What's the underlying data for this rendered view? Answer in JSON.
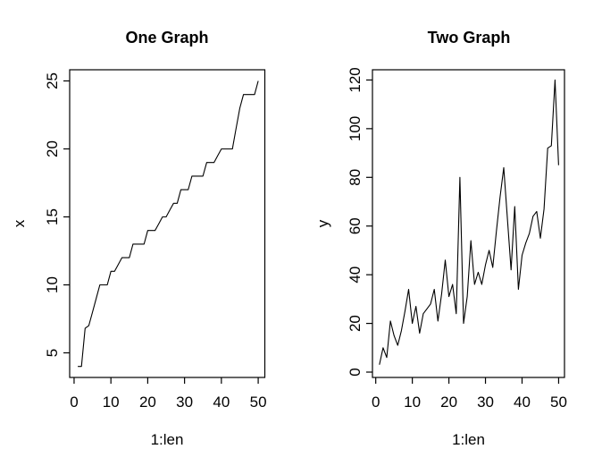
{
  "figure": {
    "background": "#ffffff",
    "line_color": "#000000",
    "text_color": "#000000"
  },
  "chart_data": [
    {
      "type": "line",
      "title": "One Graph",
      "xlabel": "1:len",
      "ylabel": "x",
      "x": [
        1,
        2,
        3,
        4,
        5,
        6,
        7,
        8,
        9,
        10,
        11,
        12,
        13,
        14,
        15,
        16,
        17,
        18,
        19,
        20,
        21,
        22,
        23,
        24,
        25,
        26,
        27,
        28,
        29,
        30,
        31,
        32,
        33,
        34,
        35,
        36,
        37,
        38,
        39,
        40,
        41,
        42,
        43,
        44,
        45,
        46,
        47,
        48,
        49,
        50
      ],
      "values": [
        4,
        4,
        6.8,
        7,
        8,
        9,
        10,
        10,
        10,
        11,
        11,
        11.5,
        12,
        12,
        12,
        13,
        13,
        13,
        13,
        14,
        14,
        14,
        14.5,
        15,
        15,
        15.5,
        16,
        16,
        17,
        17,
        17,
        18,
        18,
        18,
        18,
        19,
        19,
        19,
        19.5,
        20,
        20,
        20,
        20,
        21.5,
        23,
        24,
        24,
        24,
        24,
        25
      ],
      "xticks": [
        0,
        10,
        20,
        30,
        40,
        50
      ],
      "yticks": [
        5,
        10,
        15,
        20,
        25
      ],
      "xlim": [
        -1.2,
        51.8
      ],
      "ylim": [
        3.19,
        25.82
      ],
      "grid": false,
      "legend": null
    },
    {
      "type": "line",
      "title": "Two Graph",
      "xlabel": "1:len",
      "ylabel": "y",
      "x": [
        1,
        2,
        3,
        4,
        5,
        6,
        7,
        8,
        9,
        10,
        11,
        12,
        13,
        14,
        15,
        16,
        17,
        18,
        19,
        20,
        21,
        22,
        23,
        24,
        25,
        26,
        27,
        28,
        29,
        30,
        31,
        32,
        33,
        34,
        35,
        36,
        37,
        38,
        39,
        40,
        41,
        42,
        43,
        44,
        45,
        46,
        47,
        48,
        49,
        50
      ],
      "values": [
        3,
        10,
        6,
        21,
        15,
        11,
        17,
        25,
        34,
        20,
        27,
        16,
        24,
        26,
        28,
        34,
        21,
        32,
        46,
        31,
        36,
        24,
        80,
        20,
        31,
        54,
        36,
        41,
        36,
        44,
        50,
        43,
        58,
        72,
        84,
        63,
        42,
        68,
        34,
        48,
        53,
        57,
        64,
        66,
        55,
        67,
        92,
        93,
        120,
        85
      ],
      "xticks": [
        0,
        10,
        20,
        30,
        40,
        50
      ],
      "yticks": [
        0,
        20,
        40,
        60,
        80,
        100,
        120
      ],
      "xlim": [
        -0.9,
        51.6
      ],
      "ylim": [
        -2.2,
        124.2
      ],
      "grid": false,
      "legend": null
    }
  ]
}
